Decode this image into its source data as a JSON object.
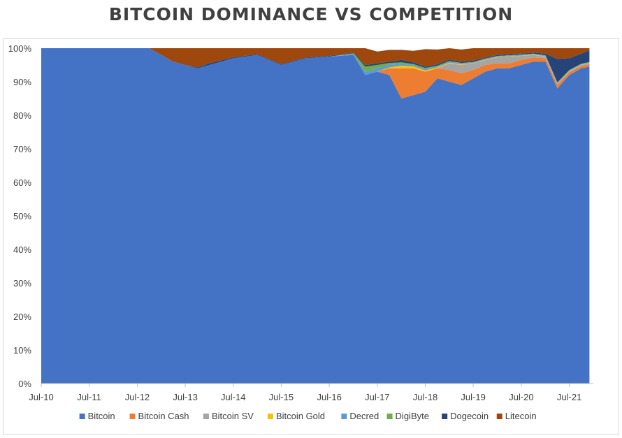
{
  "chart_data": {
    "type": "area",
    "stacked": true,
    "title": "BITCOIN DOMINANCE VS COMPETITION",
    "xlabel": "",
    "ylabel": "",
    "ylim": [
      0,
      100
    ],
    "y_tick_labels": [
      "0%",
      "10%",
      "20%",
      "30%",
      "40%",
      "50%",
      "60%",
      "70%",
      "80%",
      "90%",
      "100%"
    ],
    "x_tick_labels": [
      "Jul-10",
      "Jul-11",
      "Jul-12",
      "Jul-13",
      "Jul-14",
      "Jul-15",
      "Jul-16",
      "Jul-17",
      "Jul-18",
      "Jul-19",
      "Jul-20",
      "Jul-21"
    ],
    "grid": false,
    "legend_position": "bottom",
    "x": [
      "2010-07",
      "2012-10",
      "2013-04",
      "2013-07",
      "2013-10",
      "2014-01",
      "2014-07",
      "2015-01",
      "2015-07",
      "2016-01",
      "2016-07",
      "2017-01",
      "2017-04",
      "2017-07",
      "2017-10",
      "2018-01",
      "2018-04",
      "2018-07",
      "2018-10",
      "2019-01",
      "2019-04",
      "2019-07",
      "2019-10",
      "2020-01",
      "2020-04",
      "2020-07",
      "2020-10",
      "2021-01",
      "2021-04",
      "2021-07",
      "2021-10",
      "2021-12"
    ],
    "series": [
      {
        "name": "Bitcoin",
        "color": "#4472c4",
        "values": [
          100,
          100,
          96,
          95,
          94,
          95,
          97,
          98,
          95,
          97,
          97.5,
          98,
          92,
          93,
          92,
          85,
          86,
          87,
          91,
          90,
          89,
          91,
          93,
          94,
          94,
          95,
          96,
          96,
          88,
          92,
          94,
          94.5
        ]
      },
      {
        "name": "Bitcoin Cash",
        "color": "#ed7d31",
        "values": [
          0,
          0,
          0,
          0,
          0,
          0,
          0,
          0,
          0,
          0,
          0,
          0,
          0,
          0,
          2,
          9,
          8,
          6,
          3,
          3.5,
          3.5,
          2.5,
          2,
          1.5,
          1.5,
          1.5,
          1.2,
          1,
          1,
          0.8,
          0.7,
          0.7
        ]
      },
      {
        "name": "Bitcoin SV",
        "color": "#a5a5a5",
        "values": [
          0,
          0,
          0,
          0,
          0,
          0,
          0,
          0,
          0,
          0,
          0,
          0,
          0,
          0,
          0,
          0,
          0,
          0,
          0,
          2,
          2.5,
          2,
          1.5,
          1.8,
          2,
          1.2,
          0.8,
          0.5,
          0.4,
          0.3,
          0.3,
          0.3
        ]
      },
      {
        "name": "Bitcoin Gold",
        "color": "#ffc000",
        "values": [
          0,
          0,
          0,
          0,
          0,
          0,
          0,
          0,
          0,
          0,
          0,
          0,
          0,
          0,
          0.3,
          0.8,
          0.6,
          0.4,
          0.3,
          0.2,
          0.2,
          0.1,
          0.1,
          0.1,
          0.1,
          0.1,
          0.1,
          0.1,
          0.1,
          0.1,
          0.1,
          0.1
        ]
      },
      {
        "name": "Decred",
        "color": "#5b9bd5",
        "values": [
          0,
          0,
          0,
          0,
          0,
          0,
          0,
          0,
          0,
          0,
          0,
          0.3,
          1,
          1,
          0.8,
          0.5,
          0.4,
          0.4,
          0.3,
          0.3,
          0.3,
          0.2,
          0.2,
          0.2,
          0.2,
          0.2,
          0.2,
          0.2,
          0.2,
          0.2,
          0.2,
          0.2
        ]
      },
      {
        "name": "DigiByte",
        "color": "#70ad47",
        "values": [
          0,
          0,
          0,
          0,
          0,
          0,
          0,
          0,
          0,
          0,
          0,
          0.2,
          1.5,
          1,
          0.5,
          0.5,
          0.3,
          0.3,
          0.2,
          0.2,
          0.1,
          0.1,
          0.1,
          0.1,
          0.1,
          0.1,
          0.1,
          0.1,
          0.1,
          0.1,
          0.1,
          0.1
        ]
      },
      {
        "name": "Dogecoin",
        "color": "#264478",
        "values": [
          0,
          0,
          0,
          0,
          0.3,
          0.5,
          0.3,
          0.2,
          0.2,
          0.2,
          0.2,
          0.2,
          0.5,
          0.5,
          0.4,
          0.7,
          0.5,
          0.4,
          0.4,
          0.4,
          0.4,
          0.4,
          0.3,
          0.3,
          0.3,
          0.3,
          0.3,
          0.5,
          7,
          3.5,
          3,
          3.5
        ]
      },
      {
        "name": "Litecoin",
        "color": "#9e480e",
        "values": [
          0,
          0,
          4,
          5,
          5.7,
          4.5,
          2.7,
          1.8,
          4.8,
          2.8,
          2.3,
          1.3,
          5,
          3.5,
          3.5,
          3,
          3.4,
          5.2,
          4.4,
          3.4,
          3.6,
          3.7,
          2.8,
          2,
          1.8,
          1.6,
          1.3,
          1.6,
          3.2,
          3,
          1.6,
          0.6
        ]
      }
    ]
  }
}
